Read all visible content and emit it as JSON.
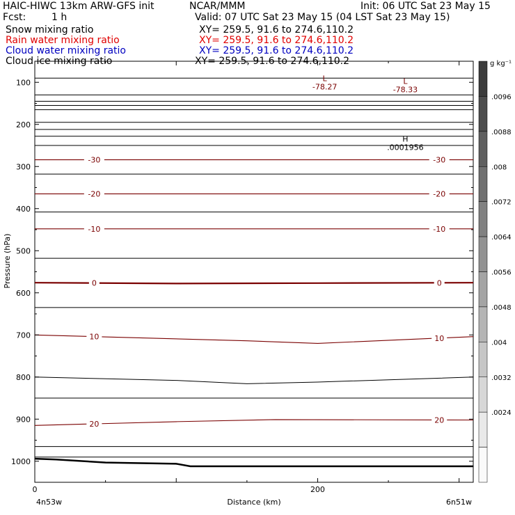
{
  "header": {
    "model": "HAIC-HIWC 13km ARW-GFS init",
    "org": "NCAR/MMM",
    "init": "Init: 06 UTC Sat 23 May 15",
    "fcst_label": "Fcst:",
    "fcst_value": "1 h",
    "valid": "Valid: 07 UTC Sat 23 May 15 (04 LST Sat 23 May 15)",
    "fields": [
      {
        "name": "Snow mixing ratio",
        "xy": "XY= 259.5, 91.6 to 274.6,110.2",
        "color": "#000000"
      },
      {
        "name": "Rain water mixing ratio",
        "xy": "XY= 259.5, 91.6 to 274.6,110.2",
        "color": "#e00000"
      },
      {
        "name": "Cloud water mixing ratio",
        "xy": "XY= 259.5, 91.6 to 274.6,110.2",
        "color": "#0000c0"
      },
      {
        "name": "Cloud ice mixing ratio",
        "xy": "XY= 259.5, 91.6 to 274.6,110.2",
        "color": "#000000"
      }
    ]
  },
  "chart_data": {
    "type": "line",
    "xlabel": "Distance (km)",
    "ylabel": "Pressure (hPa)",
    "xlim": [
      0,
      310
    ],
    "ylim": [
      1050,
      50
    ],
    "x_ticks": [
      0,
      200
    ],
    "y_ticks": [
      100,
      200,
      300,
      400,
      500,
      600,
      700,
      800,
      900,
      1000
    ],
    "x_left_label": "4n53w",
    "x_right_label": "6n51w",
    "colorbar": {
      "unit": "g kg⁻¹",
      "ticks": [
        ".0096",
        ".0088",
        ".008",
        ".0072",
        ".0064",
        ".0056",
        ".0048",
        ".004",
        ".0032",
        ".0024"
      ]
    },
    "extrema": [
      {
        "type": "L",
        "value": "-78.27",
        "x": 205,
        "p": 97
      },
      {
        "type": "L",
        "value": "-78.33",
        "x": 262,
        "p": 104
      },
      {
        "type": "H",
        "value": ".0001956",
        "x": 262,
        "p": 241
      }
    ],
    "temperature_contours": [
      {
        "label": "-30",
        "x": [
          0,
          310
        ],
        "p": [
          284,
          284
        ]
      },
      {
        "label": "-20",
        "x": [
          0,
          310
        ],
        "p": [
          365,
          365
        ]
      },
      {
        "label": "-10",
        "x": [
          0,
          310
        ],
        "p": [
          448,
          448
        ]
      },
      {
        "label": "0",
        "x": [
          0,
          100,
          200,
          310
        ],
        "p": [
          576,
          578,
          577,
          576
        ]
      },
      {
        "label": "10",
        "x": [
          0,
          150,
          200,
          310
        ],
        "p": [
          700,
          714,
          720,
          704
        ]
      },
      {
        "label": "20",
        "x": [
          0,
          100,
          170,
          310
        ],
        "p": [
          915,
          906,
          901,
          902
        ]
      }
    ],
    "other_contours": [
      {
        "x": [
          0,
          310
        ],
        "p": [
          90,
          90
        ]
      },
      {
        "x": [
          0,
          310
        ],
        "p": [
          130,
          130
        ]
      },
      {
        "x": [
          0,
          310
        ],
        "p": [
          145,
          145
        ]
      },
      {
        "x": [
          0,
          310
        ],
        "p": [
          155,
          155
        ]
      },
      {
        "x": [
          0,
          310
        ],
        "p": [
          165,
          165
        ]
      },
      {
        "x": [
          0,
          310
        ],
        "p": [
          195,
          195
        ]
      },
      {
        "x": [
          0,
          310
        ],
        "p": [
          212,
          212
        ]
      },
      {
        "x": [
          0,
          310
        ],
        "p": [
          228,
          228
        ]
      },
      {
        "x": [
          0,
          310
        ],
        "p": [
          250,
          250
        ]
      },
      {
        "x": [
          0,
          310
        ],
        "p": [
          318,
          318
        ]
      },
      {
        "x": [
          0,
          310
        ],
        "p": [
          408,
          408
        ]
      },
      {
        "x": [
          0,
          310
        ],
        "p": [
          518,
          518
        ]
      },
      {
        "x": [
          0,
          310
        ],
        "p": [
          635,
          635
        ]
      },
      {
        "x": [
          0,
          100,
          150,
          200,
          310
        ],
        "p": [
          800,
          808,
          816,
          812,
          800
        ]
      },
      {
        "x": [
          0,
          310
        ],
        "p": [
          850,
          850
        ]
      },
      {
        "x": [
          0,
          310
        ],
        "p": [
          965,
          965
        ]
      },
      {
        "x": [
          0,
          310
        ],
        "p": [
          990,
          990
        ]
      }
    ],
    "terrain": {
      "x": [
        0,
        15,
        50,
        100,
        110,
        310
      ],
      "p": [
        994,
        996,
        1003,
        1006,
        1012,
        1012
      ]
    }
  }
}
